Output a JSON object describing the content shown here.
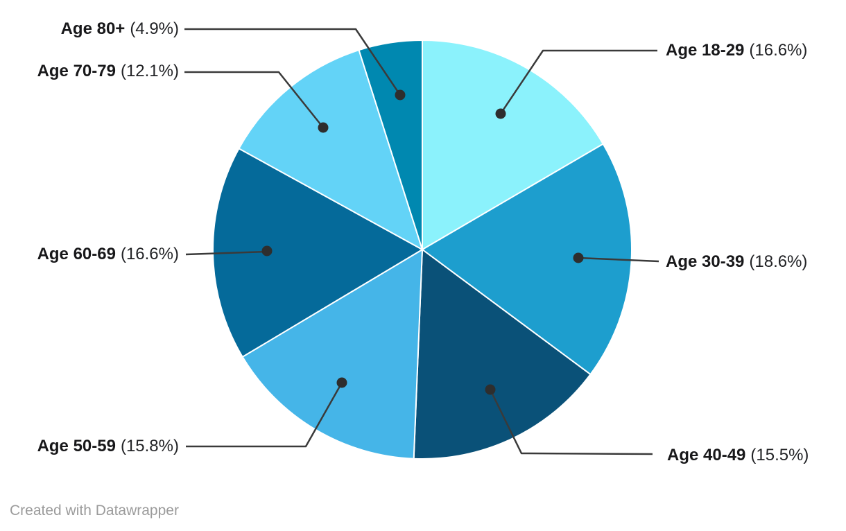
{
  "chart_data": {
    "type": "pie",
    "start_angle_deg": -90,
    "direction": "clockwise",
    "label_position": "outside",
    "slice_border_color": "#ffffff",
    "leader_line_color": "#3a3a3a",
    "label_text_color": "#18181a",
    "slices": [
      {
        "label": "Age 18-29",
        "value": 16.6,
        "pct_text": "(16.6%)",
        "color": "#8BF2FC"
      },
      {
        "label": "Age 30-39",
        "value": 18.6,
        "pct_text": "(18.6%)",
        "color": "#1D9ECE"
      },
      {
        "label": "Age 40-49",
        "value": 15.5,
        "pct_text": "(15.5%)",
        "color": "#0A5178"
      },
      {
        "label": "Age 50-59",
        "value": 15.8,
        "pct_text": "(15.8%)",
        "color": "#45B5E8"
      },
      {
        "label": "Age 60-69",
        "value": 16.6,
        "pct_text": "(16.6%)",
        "color": "#056A9A"
      },
      {
        "label": "Age 70-79",
        "value": 12.1,
        "pct_text": "(12.1%)",
        "color": "#63D3F7"
      },
      {
        "label": "Age 80+",
        "value": 4.9,
        "pct_text": "(4.9%)",
        "color": "#0088B0"
      }
    ]
  },
  "footer": {
    "credit": "Created with Datawrapper"
  }
}
